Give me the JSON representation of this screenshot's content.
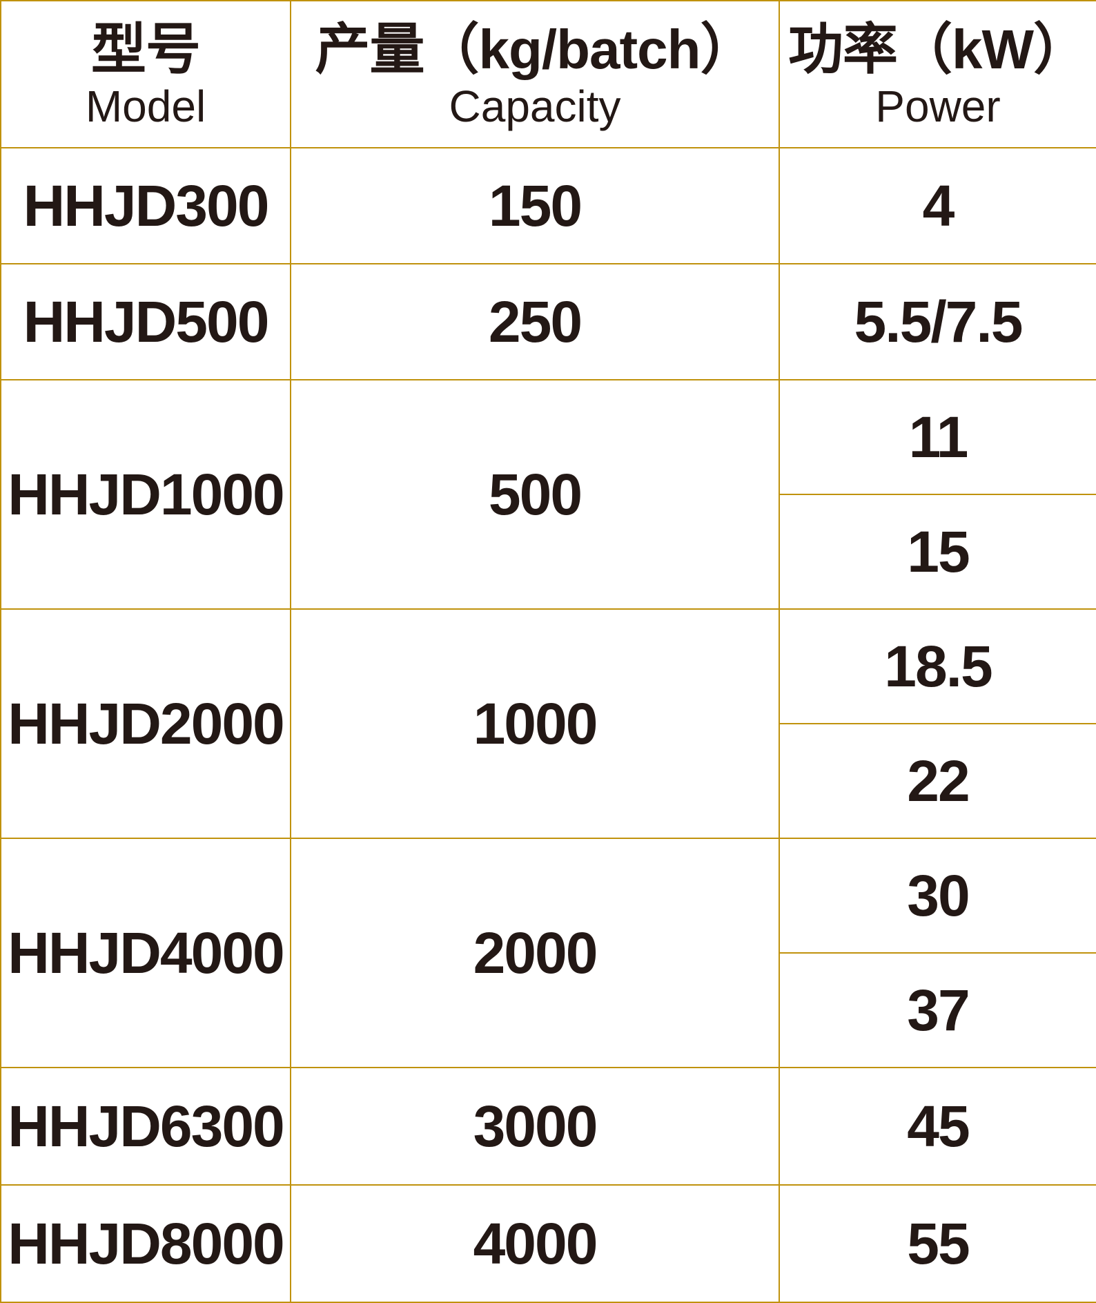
{
  "header": {
    "cols": [
      {
        "zh": "型号",
        "en": "Model"
      },
      {
        "zh": "产量（kg/batch）",
        "en": "Capacity"
      },
      {
        "zh": "功率（kW）",
        "en": "Power"
      }
    ]
  },
  "rows": [
    {
      "model": "HHJD300",
      "capacity": "150",
      "power": [
        "4"
      ]
    },
    {
      "model": "HHJD500",
      "capacity": "250",
      "power": [
        "5.5/7.5"
      ]
    },
    {
      "model": "HHJD1000",
      "capacity": "500",
      "power": [
        "11",
        "15"
      ]
    },
    {
      "model": "HHJD2000",
      "capacity": "1000",
      "power": [
        "18.5",
        "22"
      ]
    },
    {
      "model": "HHJD4000",
      "capacity": "2000",
      "power": [
        "30",
        "37"
      ]
    },
    {
      "model": "HHJD6300",
      "capacity": "3000",
      "power": [
        "45"
      ]
    },
    {
      "model": "HHJD8000",
      "capacity": "4000",
      "power": [
        "55"
      ]
    }
  ],
  "colors": {
    "border_gold": "#C0920D",
    "text_dark": "#231815",
    "background": "#FFFFFF"
  },
  "chart_data": {
    "type": "table",
    "title": "",
    "columns": [
      "型号 Model",
      "产量（kg/batch） Capacity",
      "功率（kW） Power"
    ],
    "rows": [
      [
        "HHJD300",
        150,
        "4"
      ],
      [
        "HHJD500",
        250,
        "5.5/7.5"
      ],
      [
        "HHJD1000",
        500,
        "11 | 15"
      ],
      [
        "HHJD2000",
        1000,
        "18.5 | 22"
      ],
      [
        "HHJD4000",
        2000,
        "30 | 37"
      ],
      [
        "HHJD6300",
        3000,
        "45"
      ],
      [
        "HHJD8000",
        4000,
        "55"
      ]
    ],
    "notes": "Power column is split into two stacked sub-cells for HHJD1000 (11/15), HHJD2000 (18.5/22) and HHJD4000 (30/37); model and capacity cells span both sub-rows."
  }
}
